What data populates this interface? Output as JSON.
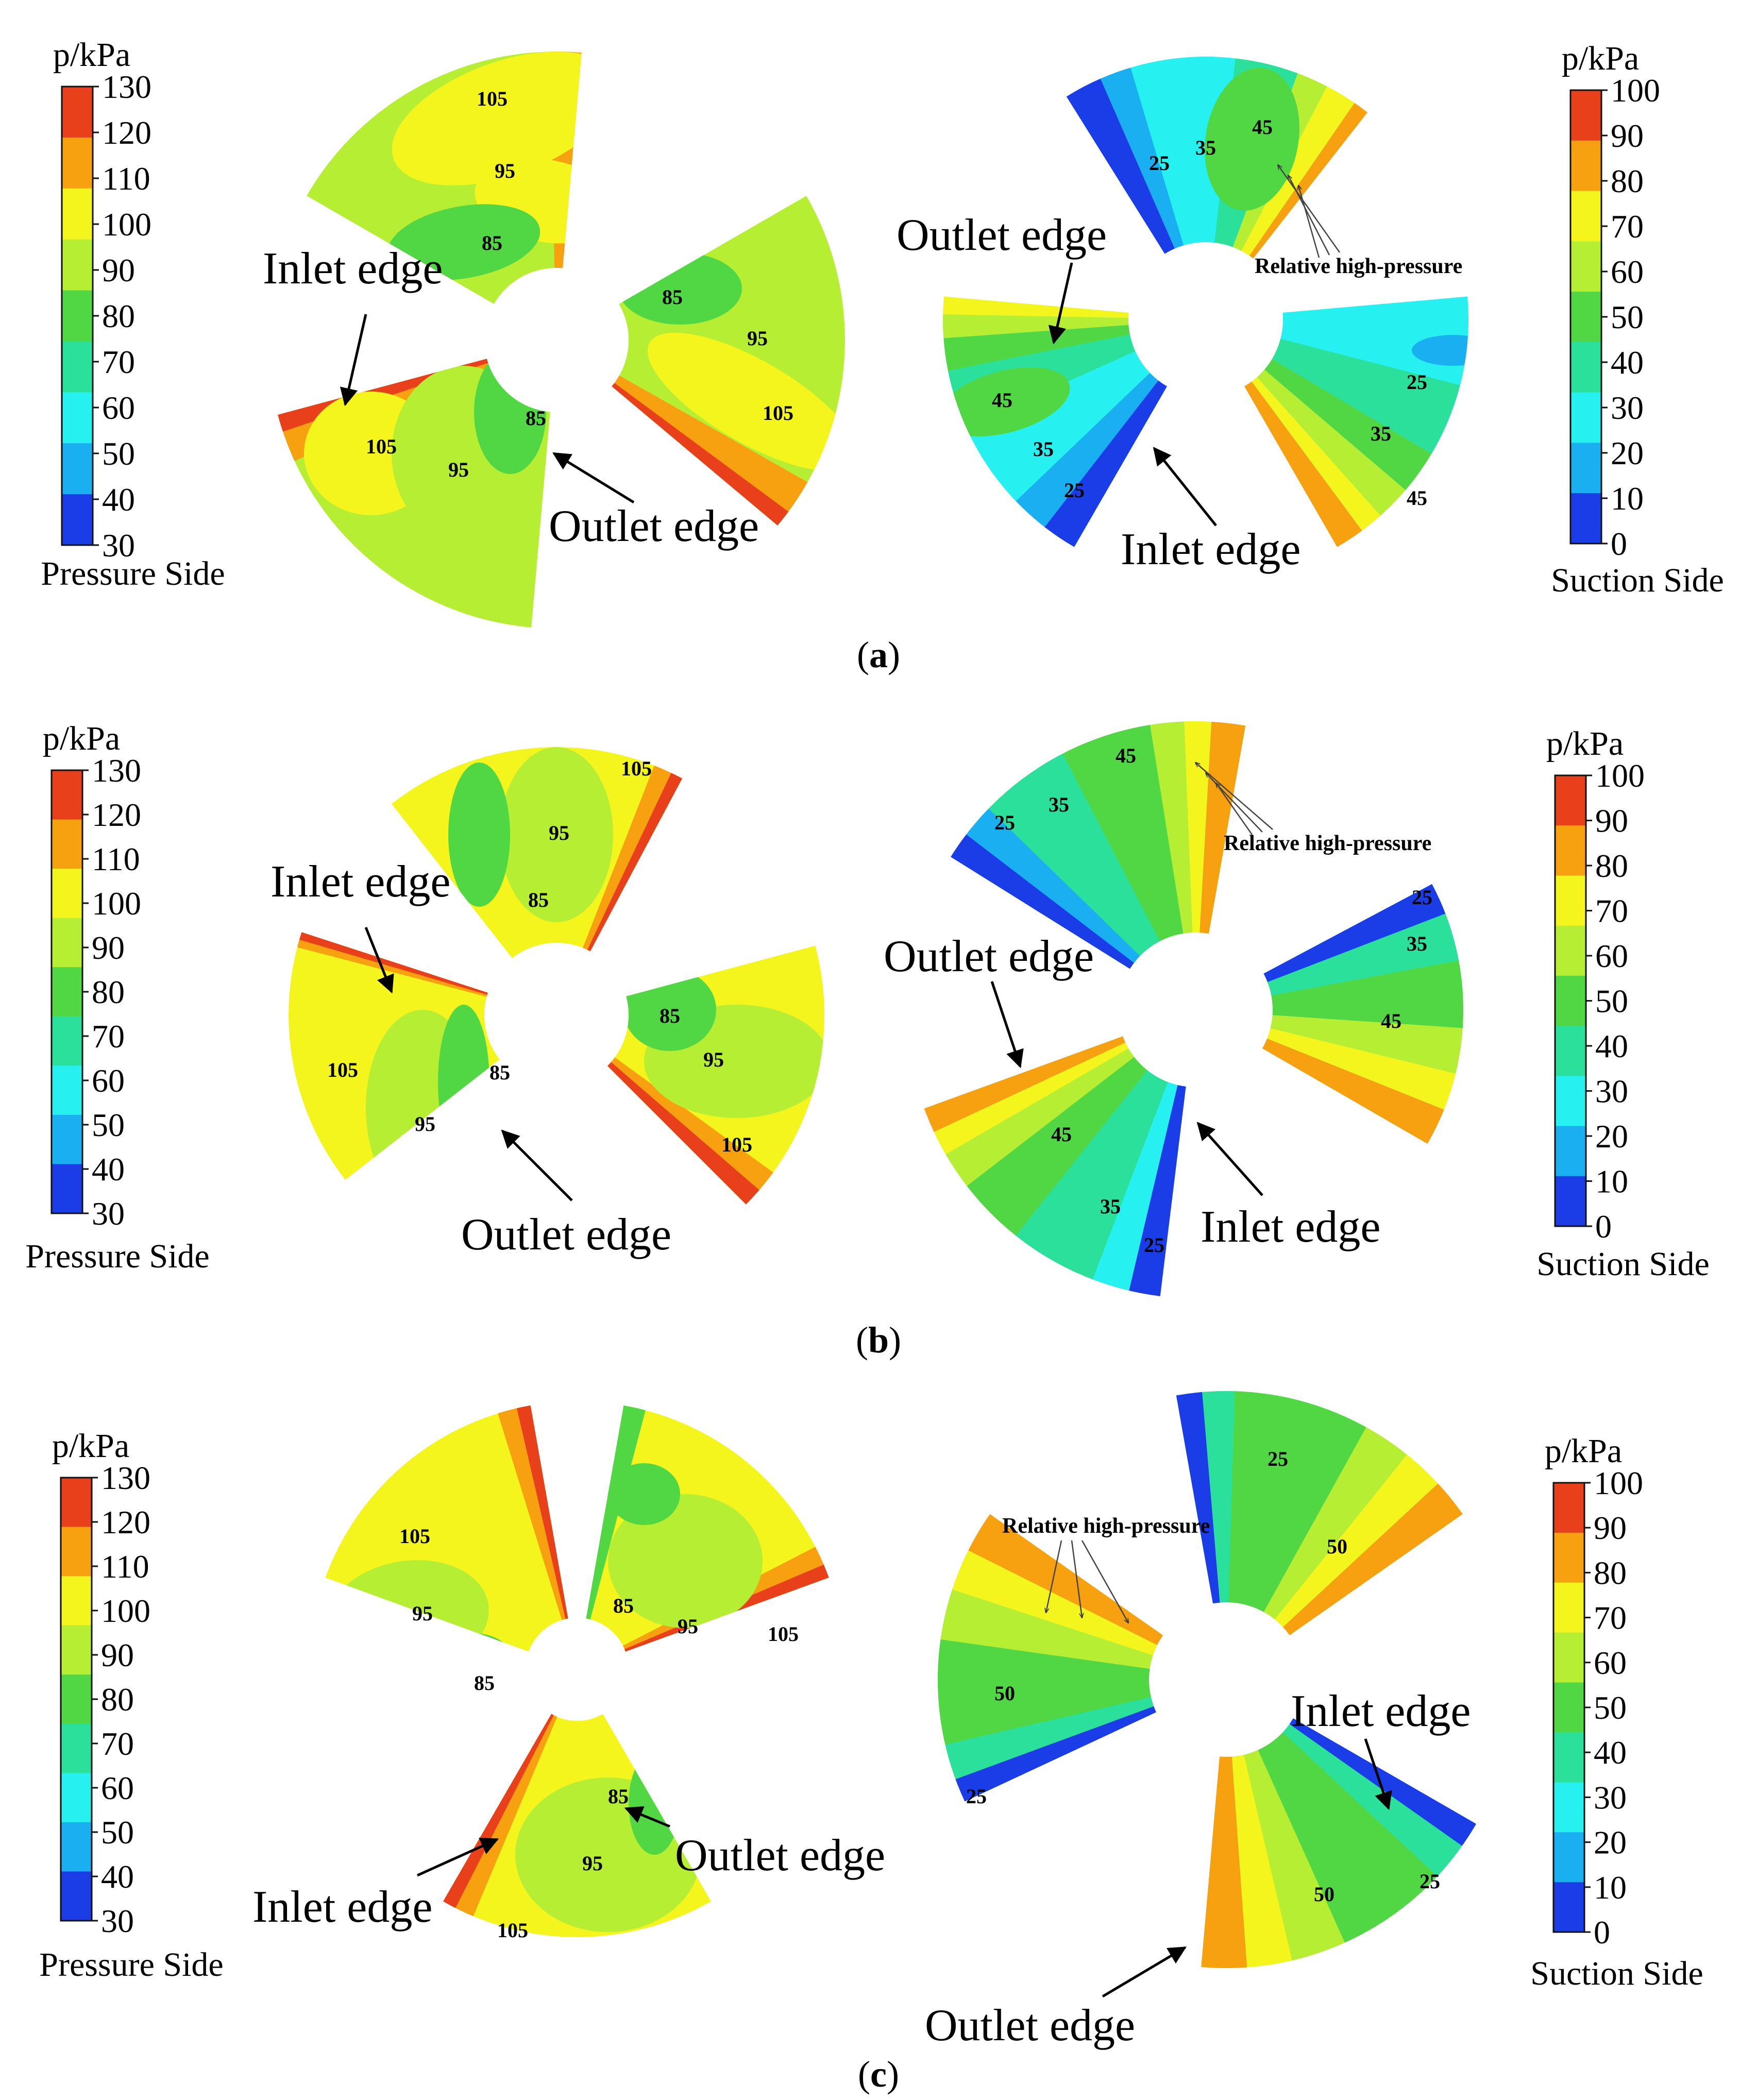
{
  "pressure_legend": {
    "title": "p/kPa",
    "ticks": [
      "130",
      "120",
      "110",
      "100",
      "90",
      "80",
      "70",
      "60",
      "50",
      "40",
      "30"
    ],
    "side_label": "Pressure Side"
  },
  "suction_legend": {
    "title": "p/kPa",
    "ticks": [
      "100",
      "90",
      "80",
      "70",
      "60",
      "50",
      "40",
      "30",
      "20",
      "10",
      "0"
    ],
    "side_label": "Suction Side"
  },
  "colormap": [
    "#e8401a",
    "#f7a010",
    "#f5f51e",
    "#b6ee33",
    "#52d744",
    "#2be09a",
    "#26f0f0",
    "#1aaff0",
    "#1a3de8"
  ],
  "annotations": {
    "inlet": "Inlet edge",
    "outlet": "Outlet edge",
    "relative_high": "Relative high-pressure"
  },
  "panels": [
    {
      "caption_open": "(",
      "caption_letter": "a",
      "caption_close": ")",
      "pressure_contours": [
        "105",
        "95",
        "85",
        "85",
        "95",
        "105",
        "105",
        "95",
        "85"
      ],
      "suction_contours": [
        "25",
        "35",
        "45",
        "45",
        "35",
        "25",
        "25",
        "35",
        "45"
      ]
    },
    {
      "caption_open": "(",
      "caption_letter": "b",
      "caption_close": ")",
      "pressure_contours": [
        "105",
        "95",
        "85",
        "105",
        "95",
        "85",
        "85",
        "95",
        "105"
      ],
      "suction_contours": [
        "25",
        "35",
        "45",
        "25",
        "35",
        "45",
        "45",
        "35",
        "25"
      ]
    },
    {
      "caption_open": "(",
      "caption_letter": "c",
      "caption_close": ")",
      "pressure_contours": [
        "105",
        "95",
        "85",
        "85",
        "95",
        "105",
        "85",
        "95",
        "105"
      ],
      "suction_contours": [
        "25",
        "50",
        "50",
        "25",
        "50",
        "25"
      ]
    }
  ]
}
